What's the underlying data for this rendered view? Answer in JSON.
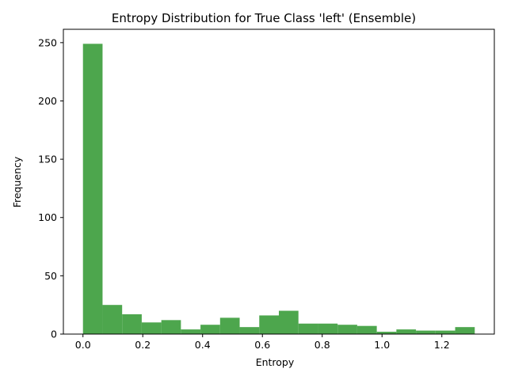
{
  "chart_data": {
    "type": "bar",
    "title": "Entropy Distribution for True Class 'left' (Ensemble)",
    "xlabel": "Entropy",
    "ylabel": "Frequency",
    "bar_color": "#4da64d",
    "bin_edges": [
      0.0,
      0.0655,
      0.131,
      0.1965,
      0.262,
      0.3275,
      0.393,
      0.4585,
      0.524,
      0.5895,
      0.655,
      0.7205,
      0.786,
      0.8515,
      0.917,
      0.9825,
      1.048,
      1.1135,
      1.179,
      1.2445,
      1.31
    ],
    "values": [
      249,
      25,
      17,
      10,
      12,
      4,
      8,
      14,
      6,
      16,
      20,
      9,
      9,
      8,
      7,
      2,
      4,
      3,
      3,
      6
    ],
    "xlim": [
      -0.0655,
      1.3755
    ],
    "ylim": [
      0,
      261.45
    ],
    "xticks": [
      0.0,
      0.2,
      0.4,
      0.6,
      0.8,
      1.0,
      1.2
    ],
    "xtick_labels": [
      "0.0",
      "0.2",
      "0.4",
      "0.6",
      "0.8",
      "1.0",
      "1.2"
    ],
    "yticks": [
      0,
      50,
      100,
      150,
      200,
      250
    ],
    "ytick_labels": [
      "0",
      "50",
      "100",
      "150",
      "200",
      "250"
    ],
    "grid": false,
    "legend": "none"
  }
}
